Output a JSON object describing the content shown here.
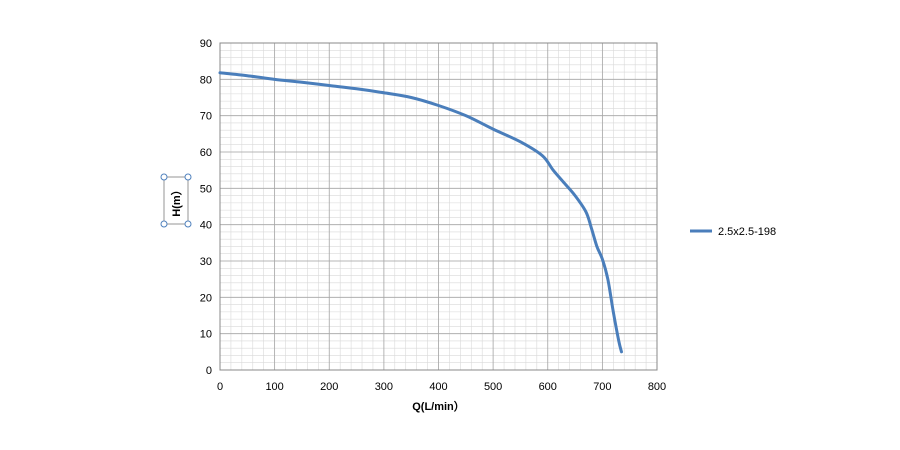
{
  "chart_data": {
    "type": "line",
    "title": "",
    "xlabel": "Q(L/min）",
    "ylabel": "H(m）",
    "xlim": [
      0,
      800
    ],
    "ylim": [
      0,
      90
    ],
    "x_ticks": [
      0,
      100,
      200,
      300,
      400,
      500,
      600,
      700,
      800
    ],
    "y_ticks": [
      0,
      10,
      20,
      30,
      40,
      50,
      60,
      70,
      80,
      90
    ],
    "grid": true,
    "minor_grid": true,
    "legend_position": "right",
    "series": [
      {
        "name": "2.5x2.5-198",
        "color": "#4a7ebb",
        "x": [
          0,
          50,
          100,
          150,
          200,
          250,
          300,
          350,
          400,
          450,
          500,
          550,
          590,
          610,
          630,
          650,
          670,
          680,
          690,
          700,
          710,
          720,
          730,
          735
        ],
        "y": [
          81.8,
          81,
          80,
          79.2,
          78.3,
          77.4,
          76.3,
          75,
          72.8,
          70,
          66.3,
          62.8,
          59,
          55,
          51.5,
          48,
          43.5,
          39,
          34,
          30.5,
          25,
          16,
          8,
          5
        ]
      }
    ]
  }
}
